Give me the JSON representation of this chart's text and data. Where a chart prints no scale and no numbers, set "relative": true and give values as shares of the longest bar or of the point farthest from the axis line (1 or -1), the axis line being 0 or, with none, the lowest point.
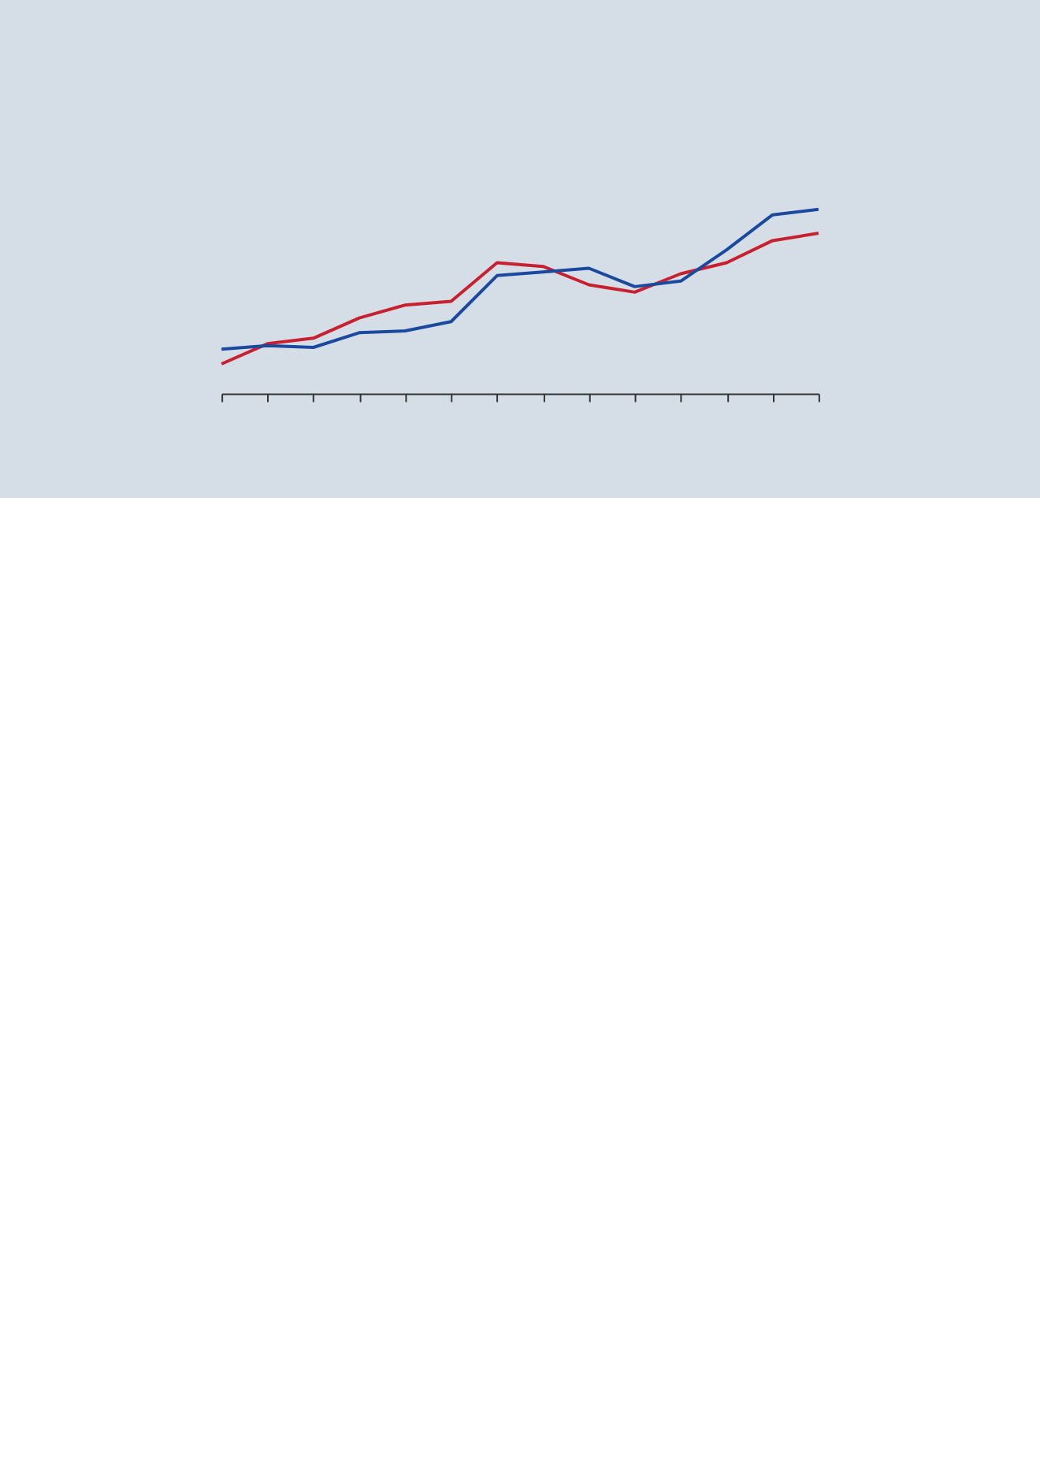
{
  "chart_data": {
    "type": "line",
    "relative": true,
    "categories": [
      null,
      null,
      null,
      null,
      null,
      null,
      null,
      null,
      null,
      null,
      null,
      null,
      null,
      null
    ],
    "series": [
      {
        "color": "#c8202f",
        "values": [
          0.16,
          0.27,
          0.3,
          0.41,
          0.48,
          0.5,
          0.71,
          0.69,
          0.59,
          0.55,
          0.65,
          0.71,
          0.83,
          0.87
        ]
      },
      {
        "color": "#1a4aa0",
        "values": [
          0.24,
          0.26,
          0.25,
          0.33,
          0.34,
          0.39,
          0.64,
          0.66,
          0.68,
          0.58,
          0.61,
          0.78,
          0.97,
          1.0
        ]
      }
    ],
    "tick_labels": false,
    "line_style": "solid",
    "marker": "none"
  }
}
